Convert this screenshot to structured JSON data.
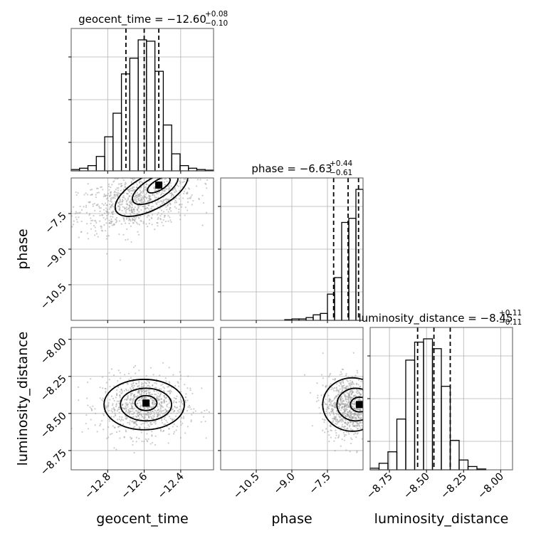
{
  "colors": {
    "ink": "#000000",
    "frame": "#555555",
    "grid": "#b0b0b0",
    "scatter": "#9a9a9a"
  },
  "chart_data": {
    "type": "corner",
    "grid": true,
    "parameters": [
      {
        "name": "geocent_time",
        "xlabel": "geocent_time",
        "title_base": "geocent_time = −12.60",
        "title_upper": "+0.08",
        "title_lower": "−0.10",
        "median": -12.6,
        "quantiles": [
          -12.7,
          -12.6,
          -12.52
        ],
        "range": [
          -13.0,
          -12.22
        ],
        "ticks": [
          -12.8,
          -12.6,
          -12.4
        ],
        "tick_labels": [
          "−12.8",
          "−12.6",
          "−12.4"
        ],
        "histogram": [
          0.01,
          0.02,
          0.04,
          0.11,
          0.26,
          0.44,
          0.74,
          0.86,
          1.0,
          0.99,
          0.76,
          0.35,
          0.13,
          0.04,
          0.02,
          0.01,
          0.005
        ]
      },
      {
        "name": "phase",
        "xlabel": "phase",
        "ylabel": "phase",
        "title_base": "phase = −6.63",
        "title_upper": "+0.44",
        "title_lower": "−0.61",
        "median": -6.63,
        "quantiles": [
          -7.24,
          -6.63,
          -6.19
        ],
        "range": [
          -12.0,
          -6.0
        ],
        "ticks": [
          -10.5,
          -9.0,
          -7.5
        ],
        "tick_labels": [
          "−10.5",
          "−9.0",
          "−7.5"
        ],
        "histogram": [
          0.0,
          0.0,
          0.0,
          0.0,
          0.0,
          0.0,
          0.0,
          0.0,
          0.0,
          0.005,
          0.01,
          0.01,
          0.02,
          0.04,
          0.05,
          0.19,
          0.31,
          0.71,
          0.74,
          0.95
        ]
      },
      {
        "name": "luminosity_distance",
        "xlabel": "luminosity_distance",
        "ylabel": "luminosity_distance",
        "title_base": "luminosity_distance = −8.45",
        "title_upper": "+0.11",
        "title_lower": "−0.11",
        "median": -8.45,
        "quantiles": [
          -8.56,
          -8.45,
          -8.34
        ],
        "range": [
          -8.88,
          -7.92
        ],
        "ticks": [
          -8.75,
          -8.5,
          -8.25,
          -8.0
        ],
        "tick_labels": [
          "−8.75",
          "−8.50",
          "−8.25",
          "−8.00"
        ],
        "histogram": [
          0.01,
          0.04,
          0.11,
          0.31,
          0.67,
          0.78,
          0.8,
          0.74,
          0.51,
          0.18,
          0.06,
          0.02,
          0.005,
          0.0,
          0.0,
          0.0
        ]
      }
    ],
    "pairs": [
      {
        "x": "geocent_time",
        "y": "phase",
        "scatter_center": [
          -12.64,
          -7.0
        ],
        "scatter_spread": [
          0.16,
          0.62
        ],
        "correlation": 0.35,
        "contours": [
          {
            "center": [
              -12.56,
              -6.6
            ],
            "rx": 0.22,
            "ry": 0.72,
            "angle": 28
          },
          {
            "center": [
              -12.54,
              -6.45
            ],
            "rx": 0.14,
            "ry": 0.45,
            "angle": 30
          },
          {
            "center": [
              -12.52,
              -6.3
            ],
            "rx": 0.07,
            "ry": 0.22,
            "angle": 30
          }
        ]
      },
      {
        "x": "geocent_time",
        "y": "luminosity_distance",
        "scatter_center": [
          -12.6,
          -8.45
        ],
        "scatter_spread": [
          0.12,
          0.1
        ],
        "correlation": 0.0,
        "contours": [
          {
            "center": [
              -12.6,
              -8.44
            ],
            "rx": 0.22,
            "ry": 0.17,
            "angle": 0
          },
          {
            "center": [
              -12.59,
              -8.44
            ],
            "rx": 0.14,
            "ry": 0.11,
            "angle": 0
          },
          {
            "center": [
              -12.59,
              -8.43
            ],
            "rx": 0.06,
            "ry": 0.05,
            "angle": 0
          }
        ]
      },
      {
        "x": "phase",
        "y": "luminosity_distance",
        "scatter_center": [
          -6.6,
          -8.45
        ],
        "scatter_spread": [
          0.55,
          0.1
        ],
        "correlation": 0.0,
        "contours": [
          {
            "center": [
              -6.45,
              -8.44
            ],
            "rx": 1.25,
            "ry": 0.18,
            "angle": 0
          },
          {
            "center": [
              -6.3,
              -8.44
            ],
            "rx": 0.8,
            "ry": 0.11,
            "angle": 0
          },
          {
            "center": [
              -6.15,
              -8.44
            ],
            "rx": 0.38,
            "ry": 0.05,
            "angle": 0
          }
        ]
      }
    ]
  }
}
